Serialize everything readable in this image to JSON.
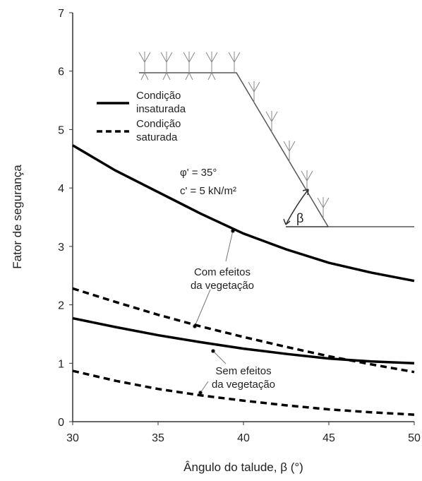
{
  "chart_data": {
    "type": "line",
    "x_label": "Ângulo do talude, β (°)",
    "y_label": "Fator de segurança",
    "x": [
      30,
      32.5,
      35,
      37.5,
      40,
      42.5,
      45,
      47.5,
      50
    ],
    "series": [
      {
        "name": "Condição insaturada",
        "color": "#000000",
        "style": "solid",
        "values": [
          4.73,
          4.3,
          3.93,
          3.56,
          3.22,
          2.95,
          2.72,
          2.55,
          2.41
        ]
      },
      {
        "name": "Condição saturada",
        "color": "#000000",
        "style": "dashed",
        "values": [
          2.28,
          2.05,
          1.83,
          1.63,
          1.45,
          1.28,
          1.12,
          0.98,
          0.85
        ]
      },
      {
        "color": "#000000",
        "style": "solid",
        "values": [
          1.77,
          1.62,
          1.48,
          1.36,
          1.25,
          1.16,
          1.08,
          1.03,
          1.0
        ]
      },
      {
        "color": "#000000",
        "style": "dashed",
        "values": [
          0.87,
          0.7,
          0.56,
          0.45,
          0.36,
          0.28,
          0.21,
          0.16,
          0.12
        ]
      }
    ],
    "xlim": [
      30,
      50
    ],
    "xticks": [
      30,
      35,
      40,
      45,
      50
    ],
    "ylim": [
      0,
      7
    ],
    "yticks": [
      0,
      1,
      2,
      3,
      4,
      5,
      6,
      7
    ],
    "annotations": {
      "phi": "φ' = 35°",
      "c": "c' = 5 kN/m²",
      "with": "Com efeitos da vegetação",
      "without": "Sem efeitos da vegetação",
      "beta": "β"
    }
  }
}
